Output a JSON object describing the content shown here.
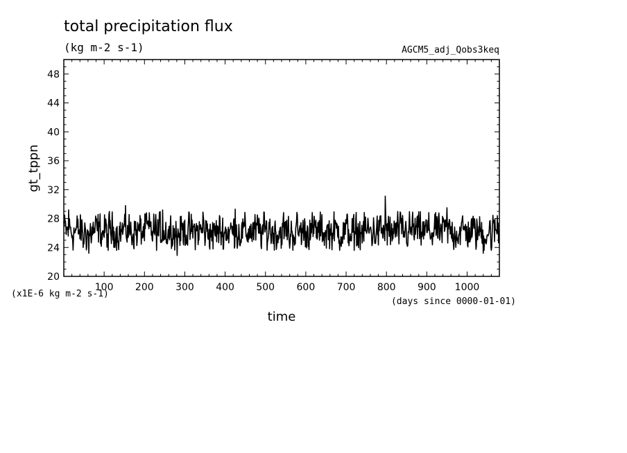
{
  "chart_data": {
    "type": "line",
    "title": "total precipitation flux",
    "title_units": "(kg m-2 s-1)",
    "dataset_label": "AGCM5_adj_Qobs3keq",
    "xlabel": "time",
    "x_units": "(days since 0000-01-01)",
    "ylabel": "gt_tppn",
    "y_units": "(x1E-6 kg m-2 s-1)",
    "xlim": [
      0,
      1080
    ],
    "ylim": [
      20,
      50
    ],
    "x_ticks": [
      100,
      200,
      300,
      400,
      500,
      600,
      700,
      800,
      900,
      1000
    ],
    "x_tick_labels": [
      "100",
      "200",
      "300",
      "400",
      "500",
      "600",
      "700",
      "800",
      "900",
      "1000"
    ],
    "y_ticks": [
      20,
      24,
      28,
      32,
      36,
      40,
      44,
      48
    ],
    "y_tick_labels": [
      "20",
      "24",
      "28",
      "32",
      "36",
      "40",
      "44",
      "48"
    ],
    "grid": false,
    "series": [
      {
        "x_start": 0,
        "x_step": 1,
        "count": 1080,
        "mean": 26.2,
        "min": 22.9,
        "max": 31.2,
        "keypoints": [
          [
            0,
            27.6
          ],
          [
            12,
            29.2
          ],
          [
            48,
            24.0
          ],
          [
            62,
            23.2
          ],
          [
            110,
            23.6
          ],
          [
            153,
            29.8
          ],
          [
            205,
            28.8
          ],
          [
            245,
            29.2
          ],
          [
            281,
            22.9
          ],
          [
            300,
            27.8
          ],
          [
            345,
            28.9
          ],
          [
            370,
            23.8
          ],
          [
            425,
            29.3
          ],
          [
            460,
            26.1
          ],
          [
            509,
            27.5
          ],
          [
            560,
            23.9
          ],
          [
            610,
            27.8
          ],
          [
            720,
            23.6
          ],
          [
            797,
            31.1
          ],
          [
            810,
            24.4
          ],
          [
            865,
            28.9
          ],
          [
            920,
            28.6
          ],
          [
            950,
            29.5
          ],
          [
            1040,
            23.2
          ],
          [
            1060,
            23.6
          ],
          [
            1075,
            28.4
          ]
        ]
      }
    ]
  }
}
